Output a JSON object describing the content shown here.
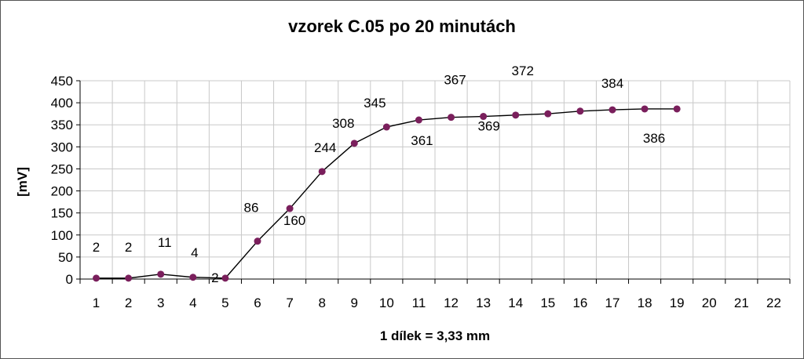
{
  "chart_data": {
    "type": "line",
    "title": "vzorek C.05 po 20 minutách",
    "xlabel": "1 dílek = 3,33 mm",
    "ylabel": "[mV]",
    "x_ticks": [
      1,
      2,
      3,
      4,
      5,
      6,
      7,
      8,
      9,
      10,
      11,
      12,
      13,
      14,
      15,
      16,
      17,
      18,
      19,
      20,
      21,
      22
    ],
    "y_ticks": [
      0,
      50,
      100,
      150,
      200,
      250,
      300,
      350,
      400,
      450
    ],
    "xlim": [
      1,
      22
    ],
    "ylim": [
      0,
      450
    ],
    "grid": true,
    "legend": "none",
    "series": [
      {
        "x": [
          1,
          2,
          3,
          4,
          5,
          6,
          7,
          8,
          9,
          10,
          11,
          12,
          13,
          14,
          15,
          16,
          17,
          18,
          19
        ],
        "values": [
          2,
          2,
          11,
          4,
          2,
          86,
          160,
          244,
          308,
          345,
          361,
          367,
          369,
          372,
          375,
          381,
          384,
          386,
          386
        ],
        "labels": [
          "2",
          "2",
          "11",
          "4",
          "2",
          "86",
          "160",
          "244",
          "308",
          "345",
          "361",
          "367",
          "369",
          "372",
          "",
          "",
          "384",
          "386",
          ""
        ],
        "color": "#7a1f5c"
      }
    ]
  }
}
